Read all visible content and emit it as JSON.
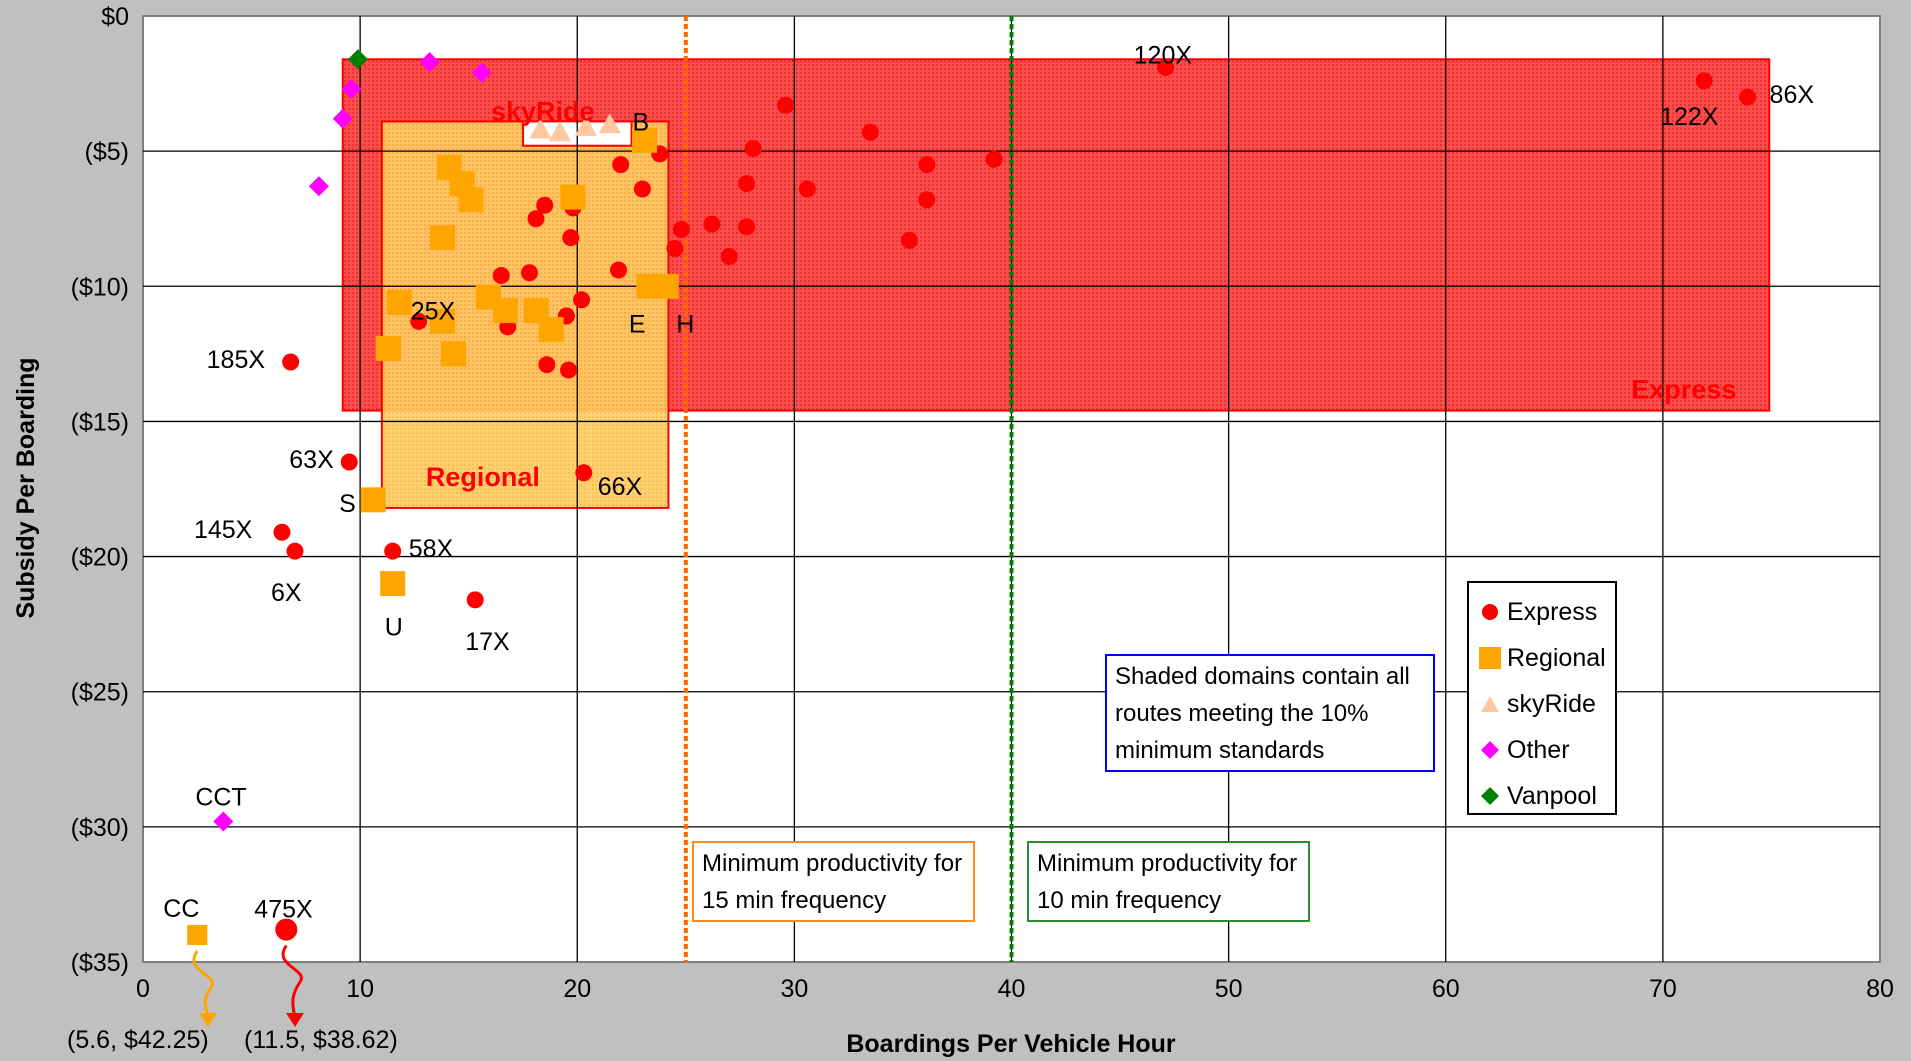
{
  "chart_data": {
    "type": "scatter",
    "title": "",
    "xlabel": "Boardings Per Vehicle Hour",
    "ylabel": "Subsidy Per Boarding",
    "xlim": [
      0,
      80
    ],
    "ylim": [
      0,
      35
    ],
    "y_inverted": true,
    "x_ticks": [
      0,
      10,
      20,
      30,
      40,
      50,
      60,
      70,
      80
    ],
    "x_tick_labels": [
      "0",
      "10",
      "20",
      "30",
      "40",
      "50",
      "60",
      "70",
      "80"
    ],
    "y_ticks": [
      0,
      5,
      10,
      15,
      20,
      25,
      30,
      35
    ],
    "y_tick_labels": [
      "$0",
      "($5)",
      "($10)",
      "($15)",
      "($20)",
      "($25)",
      "($30)",
      "($35)"
    ],
    "grid": true,
    "legend_position": "lower-right",
    "series": [
      {
        "name": "Express",
        "marker": "circle",
        "color": "#ff0000",
        "points": [
          {
            "x": 6.8,
            "y": 12.8,
            "label": "185X"
          },
          {
            "x": 9.5,
            "y": 16.5,
            "label": "63X"
          },
          {
            "x": 6.4,
            "y": 19.1,
            "label": "145X"
          },
          {
            "x": 7.0,
            "y": 19.8,
            "label": "6X"
          },
          {
            "x": 11.5,
            "y": 19.8,
            "label": "58X"
          },
          {
            "x": 15.3,
            "y": 21.6,
            "label": "17X"
          },
          {
            "x": 20.3,
            "y": 16.9,
            "label": "66X"
          },
          {
            "x": 12.7,
            "y": 11.3,
            "label": "25X"
          },
          {
            "x": 6.6,
            "y": 33.8,
            "label": "475X"
          },
          {
            "x": 47.1,
            "y": 1.9,
            "label": "120X"
          },
          {
            "x": 71.9,
            "y": 2.4,
            "label": "122X"
          },
          {
            "x": 73.9,
            "y": 3.0,
            "label": "86X"
          },
          {
            "x": 16.5,
            "y": 9.6
          },
          {
            "x": 16.8,
            "y": 11.5
          },
          {
            "x": 17.8,
            "y": 9.5
          },
          {
            "x": 18.1,
            "y": 7.5
          },
          {
            "x": 18.5,
            "y": 7.0
          },
          {
            "x": 18.6,
            "y": 12.9
          },
          {
            "x": 19.6,
            "y": 13.1
          },
          {
            "x": 19.5,
            "y": 11.1
          },
          {
            "x": 20.2,
            "y": 10.5
          },
          {
            "x": 19.7,
            "y": 8.2
          },
          {
            "x": 19.8,
            "y": 7.1
          },
          {
            "x": 21.9,
            "y": 9.4
          },
          {
            "x": 22.0,
            "y": 5.5
          },
          {
            "x": 23.0,
            "y": 6.4
          },
          {
            "x": 23.5,
            "y": 10.0
          },
          {
            "x": 23.8,
            "y": 5.1
          },
          {
            "x": 24.5,
            "y": 8.6
          },
          {
            "x": 24.8,
            "y": 7.9
          },
          {
            "x": 26.2,
            "y": 7.7
          },
          {
            "x": 27.0,
            "y": 8.9
          },
          {
            "x": 27.8,
            "y": 6.2
          },
          {
            "x": 27.8,
            "y": 7.8
          },
          {
            "x": 28.1,
            "y": 4.9
          },
          {
            "x": 29.6,
            "y": 3.3
          },
          {
            "x": 30.6,
            "y": 6.4
          },
          {
            "x": 33.5,
            "y": 4.3
          },
          {
            "x": 35.3,
            "y": 8.3
          },
          {
            "x": 36.1,
            "y": 5.5
          },
          {
            "x": 36.1,
            "y": 6.8
          },
          {
            "x": 39.2,
            "y": 5.3
          }
        ]
      },
      {
        "name": "Regional",
        "marker": "square",
        "color": "#ffa500",
        "points": [
          {
            "x": 23.1,
            "y": 4.6,
            "label": "B"
          },
          {
            "x": 23.3,
            "y": 10.0,
            "label": "E"
          },
          {
            "x": 24.1,
            "y": 10.0,
            "label": "H"
          },
          {
            "x": 10.6,
            "y": 17.9,
            "label": "S"
          },
          {
            "x": 11.5,
            "y": 21.0,
            "label": "U"
          },
          {
            "x": 2.5,
            "y": 34.0,
            "label": "CC"
          },
          {
            "x": 14.1,
            "y": 5.6
          },
          {
            "x": 14.7,
            "y": 6.2
          },
          {
            "x": 15.1,
            "y": 6.8
          },
          {
            "x": 13.8,
            "y": 8.2
          },
          {
            "x": 11.8,
            "y": 10.6
          },
          {
            "x": 11.3,
            "y": 12.3
          },
          {
            "x": 13.8,
            "y": 11.3
          },
          {
            "x": 14.3,
            "y": 12.5
          },
          {
            "x": 15.9,
            "y": 10.4
          },
          {
            "x": 16.7,
            "y": 10.9
          },
          {
            "x": 18.1,
            "y": 10.9
          },
          {
            "x": 18.8,
            "y": 11.6
          },
          {
            "x": 19.8,
            "y": 6.7
          }
        ]
      },
      {
        "name": "skyRide",
        "marker": "triangle",
        "color": "#ffc8a0",
        "points": [
          {
            "x": 18.3,
            "y": 4.2
          },
          {
            "x": 21.5,
            "y": 4.0
          },
          {
            "x": 19.2,
            "y": 4.3
          },
          {
            "x": 20.4,
            "y": 4.1
          }
        ]
      },
      {
        "name": "Other",
        "marker": "diamond",
        "color": "#ff00ff",
        "points": [
          {
            "x": 3.7,
            "y": 29.8,
            "label": "CCT"
          },
          {
            "x": 8.1,
            "y": 6.3
          },
          {
            "x": 9.2,
            "y": 3.8
          },
          {
            "x": 9.6,
            "y": 2.7
          },
          {
            "x": 13.2,
            "y": 1.7
          },
          {
            "x": 15.6,
            "y": 2.1
          }
        ]
      },
      {
        "name": "Vanpool",
        "marker": "diamond",
        "color": "#008000",
        "points": [
          {
            "x": 9.9,
            "y": 1.6
          }
        ]
      }
    ],
    "regions": [
      {
        "name": "Express",
        "label": "Express",
        "x": [
          9.2,
          74.9
        ],
        "y": [
          1.6,
          14.6
        ],
        "color": "#ff0000"
      },
      {
        "name": "Regional",
        "label": "Regional",
        "x": [
          11.0,
          24.2
        ],
        "y": [
          3.9,
          18.2
        ],
        "color": "#ffcc66"
      },
      {
        "name": "skyRide",
        "label": "skyRide",
        "x": [
          17.5,
          22.5
        ],
        "y": [
          3.9,
          4.8
        ],
        "color": "#ffffff"
      }
    ],
    "reference_lines": [
      {
        "x": 25,
        "color": "#ff6600",
        "label": "Minimum productivity for 15 min frequency"
      },
      {
        "x": 40,
        "color": "#008000",
        "label": "Minimum productivity for 10 min frequency"
      }
    ],
    "off_chart": [
      {
        "label": "(5.6, $42.25)",
        "series": "Regional",
        "from_x": 2.5,
        "from_y": 34.0,
        "color": "#ffa500"
      },
      {
        "label": "(11.5, $38.62)",
        "series": "Express",
        "from_x": 6.6,
        "from_y": 33.8,
        "color": "#ff0000"
      }
    ],
    "annotation": "Shaded domains contain all routes meeting the 10% minimum standards"
  }
}
